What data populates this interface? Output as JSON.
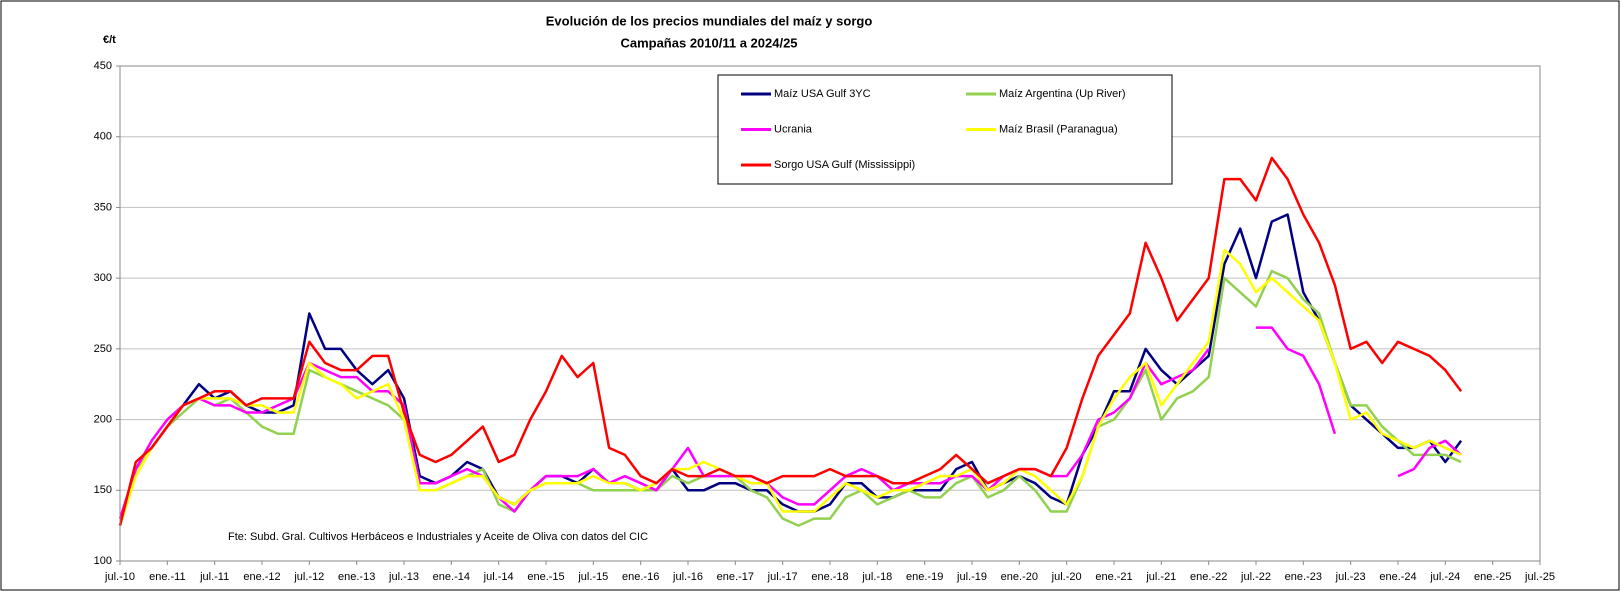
{
  "chart_data": {
    "type": "line",
    "title": "Evolución de los precios mundiales del maíz y sorgo",
    "subtitle": "Campañas 2010/11 a 2024/25",
    "y_label": "€/t",
    "annotation": "Fte: Subd. Gral. Cultivos Herbáceos e Industriales y Aceite de Oliva con datos del CIC",
    "grid": true,
    "x": [
      "2010-07",
      "2010-09",
      "2010-11",
      "2011-01",
      "2011-03",
      "2011-05",
      "2011-07",
      "2011-09",
      "2011-11",
      "2012-01",
      "2012-03",
      "2012-05",
      "2012-07",
      "2012-09",
      "2012-11",
      "2013-01",
      "2013-03",
      "2013-05",
      "2013-07",
      "2013-09",
      "2013-11",
      "2014-01",
      "2014-03",
      "2014-05",
      "2014-07",
      "2014-09",
      "2014-11",
      "2015-01",
      "2015-03",
      "2015-05",
      "2015-07",
      "2015-09",
      "2015-11",
      "2016-01",
      "2016-03",
      "2016-05",
      "2016-07",
      "2016-09",
      "2016-11",
      "2017-01",
      "2017-03",
      "2017-05",
      "2017-07",
      "2017-09",
      "2017-11",
      "2018-01",
      "2018-03",
      "2018-05",
      "2018-07",
      "2018-09",
      "2018-11",
      "2019-01",
      "2019-03",
      "2019-05",
      "2019-07",
      "2019-09",
      "2019-11",
      "2020-01",
      "2020-03",
      "2020-05",
      "2020-07",
      "2020-09",
      "2020-11",
      "2021-01",
      "2021-03",
      "2021-05",
      "2021-07",
      "2021-09",
      "2021-11",
      "2022-01",
      "2022-03",
      "2022-05",
      "2022-07",
      "2022-09",
      "2022-11",
      "2023-01",
      "2023-03",
      "2023-05",
      "2023-07",
      "2023-09",
      "2023-11",
      "2024-01",
      "2024-03",
      "2024-05",
      "2024-07",
      "2024-09"
    ],
    "series": [
      {
        "name": "Maíz USA Gulf 3YC",
        "color": "#000080",
        "values": [
          125,
          165,
          180,
          195,
          210,
          225,
          215,
          220,
          210,
          205,
          205,
          210,
          275,
          250,
          250,
          235,
          225,
          235,
          215,
          160,
          155,
          160,
          170,
          165,
          145,
          140,
          150,
          160,
          160,
          155,
          165,
          155,
          155,
          150,
          150,
          165,
          150,
          150,
          155,
          155,
          150,
          150,
          140,
          135,
          135,
          140,
          155,
          155,
          145,
          145,
          150,
          150,
          150,
          165,
          170,
          150,
          155,
          160,
          155,
          145,
          140,
          175,
          195,
          220,
          220,
          250,
          235,
          225,
          235,
          245,
          310,
          335,
          300,
          340,
          345,
          290,
          270,
          240,
          210,
          200,
          190,
          180,
          180,
          185,
          170,
          185
        ]
      },
      {
        "name": "Maíz Argentina (Up River)",
        "color": "#92d050",
        "values": [
          125,
          165,
          180,
          195,
          205,
          215,
          210,
          215,
          205,
          195,
          190,
          190,
          235,
          230,
          225,
          220,
          215,
          210,
          200,
          150,
          150,
          155,
          160,
          165,
          140,
          135,
          150,
          155,
          155,
          155,
          150,
          150,
          150,
          150,
          150,
          160,
          155,
          160,
          160,
          160,
          150,
          145,
          130,
          125,
          130,
          130,
          145,
          150,
          140,
          145,
          150,
          145,
          145,
          155,
          160,
          145,
          150,
          160,
          150,
          135,
          135,
          160,
          195,
          200,
          215,
          235,
          200,
          215,
          220,
          230,
          300,
          290,
          280,
          305,
          300,
          285,
          275,
          240,
          210,
          210,
          195,
          185,
          175,
          175,
          175,
          170
        ]
      },
      {
        "name": "Ucrania",
        "color": "#ff00ff",
        "values": [
          130,
          165,
          185,
          200,
          210,
          215,
          210,
          210,
          205,
          205,
          210,
          215,
          240,
          235,
          230,
          230,
          220,
          220,
          210,
          155,
          155,
          160,
          165,
          160,
          145,
          135,
          150,
          160,
          160,
          160,
          165,
          155,
          160,
          155,
          150,
          165,
          180,
          160,
          160,
          160,
          160,
          155,
          145,
          140,
          140,
          150,
          160,
          165,
          160,
          150,
          155,
          155,
          155,
          160,
          160,
          150,
          160,
          165,
          165,
          160,
          160,
          175,
          200,
          205,
          215,
          240,
          225,
          230,
          235,
          250,
          null,
          null,
          265,
          265,
          250,
          245,
          225,
          190,
          null,
          null,
          null,
          160,
          165,
          180,
          185,
          175
        ]
      },
      {
        "name": "Maíz Brasil (Paranagua)",
        "color": "#ffff00",
        "values": [
          125,
          160,
          180,
          195,
          210,
          215,
          215,
          215,
          210,
          210,
          205,
          205,
          240,
          230,
          225,
          215,
          220,
          225,
          200,
          150,
          150,
          155,
          160,
          160,
          145,
          140,
          150,
          155,
          155,
          155,
          160,
          155,
          155,
          150,
          155,
          165,
          165,
          170,
          165,
          160,
          155,
          155,
          135,
          135,
          135,
          145,
          155,
          150,
          145,
          150,
          150,
          155,
          160,
          160,
          165,
          150,
          155,
          165,
          160,
          150,
          140,
          160,
          195,
          215,
          230,
          240,
          210,
          225,
          240,
          255,
          320,
          310,
          290,
          300,
          290,
          280,
          270,
          240,
          200,
          205,
          190,
          185,
          180,
          185,
          180,
          175
        ]
      },
      {
        "name": "Sorgo USA Gulf (Mississippi)",
        "color": "#ff0000",
        "values": [
          125,
          170,
          180,
          195,
          210,
          215,
          220,
          220,
          210,
          215,
          215,
          215,
          255,
          240,
          235,
          235,
          245,
          245,
          205,
          175,
          170,
          175,
          185,
          195,
          170,
          175,
          200,
          220,
          245,
          230,
          240,
          180,
          175,
          160,
          155,
          165,
          160,
          160,
          165,
          160,
          160,
          155,
          160,
          160,
          160,
          165,
          160,
          160,
          160,
          155,
          155,
          160,
          165,
          175,
          165,
          155,
          160,
          165,
          165,
          160,
          180,
          215,
          245,
          260,
          275,
          325,
          300,
          270,
          285,
          300,
          370,
          370,
          355,
          385,
          370,
          345,
          325,
          295,
          250,
          255,
          240,
          255,
          250,
          245,
          235,
          220
        ]
      }
    ],
    "xlim": [
      "2010-07",
      "2025-07"
    ],
    "xticks": [
      {
        "value": "2010-07",
        "label": "jul.-10"
      },
      {
        "value": "2011-01",
        "label": "ene.-11"
      },
      {
        "value": "2011-07",
        "label": "jul.-11"
      },
      {
        "value": "2012-01",
        "label": "ene.-12"
      },
      {
        "value": "2012-07",
        "label": "jul.-12"
      },
      {
        "value": "2013-01",
        "label": "ene.-13"
      },
      {
        "value": "2013-07",
        "label": "jul.-13"
      },
      {
        "value": "2014-01",
        "label": "ene.-14"
      },
      {
        "value": "2014-07",
        "label": "jul.-14"
      },
      {
        "value": "2015-01",
        "label": "ene.-15"
      },
      {
        "value": "2015-07",
        "label": "jul.-15"
      },
      {
        "value": "2016-01",
        "label": "ene.-16"
      },
      {
        "value": "2016-07",
        "label": "jul.-16"
      },
      {
        "value": "2017-01",
        "label": "ene.-17"
      },
      {
        "value": "2017-07",
        "label": "jul.-17"
      },
      {
        "value": "2018-01",
        "label": "ene.-18"
      },
      {
        "value": "2018-07",
        "label": "jul.-18"
      },
      {
        "value": "2019-01",
        "label": "ene.-19"
      },
      {
        "value": "2019-07",
        "label": "jul.-19"
      },
      {
        "value": "2020-01",
        "label": "ene.-20"
      },
      {
        "value": "2020-07",
        "label": "jul.-20"
      },
      {
        "value": "2021-01",
        "label": "ene.-21"
      },
      {
        "value": "2021-07",
        "label": "jul.-21"
      },
      {
        "value": "2022-01",
        "label": "ene.-22"
      },
      {
        "value": "2022-07",
        "label": "jul.-22"
      },
      {
        "value": "2023-01",
        "label": "ene.-23"
      },
      {
        "value": "2023-07",
        "label": "jul.-23"
      },
      {
        "value": "2024-01",
        "label": "ene.-24"
      },
      {
        "value": "2024-07",
        "label": "jul.-24"
      },
      {
        "value": "2025-01",
        "label": "ene.-25"
      },
      {
        "value": "2025-07",
        "label": "jul.-25"
      }
    ],
    "ylim": [
      100,
      450
    ],
    "yticks": [
      100,
      150,
      200,
      250,
      300,
      350,
      400,
      450
    ]
  }
}
